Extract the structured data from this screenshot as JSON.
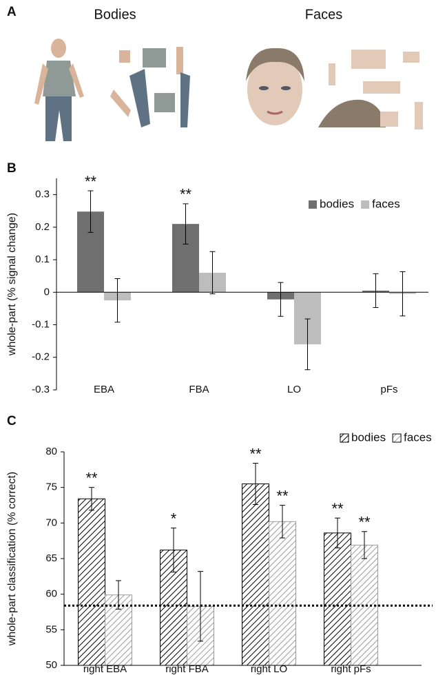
{
  "panel_a": {
    "label": "A",
    "titles": [
      "Bodies",
      "Faces"
    ]
  },
  "chart_data": [
    {
      "type": "bar",
      "panel_label": "B",
      "y_label": "whole-part (% signal change)",
      "categories": [
        "EBA",
        "FBA",
        "LO",
        "pFs"
      ],
      "series": [
        {
          "name": "bodies",
          "color": "#6f6f6f",
          "values": [
            0.248,
            0.21,
            -0.022,
            0.005
          ],
          "errors": [
            0.064,
            0.062,
            0.052,
            0.052
          ],
          "significance": [
            "**",
            "**",
            null,
            null
          ]
        },
        {
          "name": "faces",
          "color": "#bdbdbd",
          "values": [
            -0.025,
            0.06,
            -0.16,
            -0.005
          ],
          "errors": [
            0.067,
            0.065,
            0.078,
            0.068
          ],
          "significance": [
            null,
            null,
            null,
            null
          ]
        }
      ],
      "ylim": [
        -0.3,
        0.35
      ],
      "yticks": [
        -0.3,
        -0.2,
        -0.1,
        0,
        0.1,
        0.2,
        0.3
      ],
      "legend": "top-right"
    },
    {
      "type": "bar",
      "panel_label": "C",
      "y_label": "whole-part classification (% correct)",
      "categories": [
        "right EBA",
        "right FBA",
        "right LO",
        "right pFs"
      ],
      "series": [
        {
          "name": "bodies",
          "color": "#000000",
          "values": [
            73.4,
            66.2,
            75.5,
            68.6
          ],
          "errors": [
            1.6,
            3.1,
            2.9,
            2.1
          ],
          "significance": [
            "**",
            "*",
            "**",
            "**"
          ]
        },
        {
          "name": "faces",
          "color": "#9a9a9a",
          "values": [
            59.9,
            58.3,
            70.2,
            66.9
          ],
          "errors": [
            2.0,
            4.9,
            2.3,
            1.9
          ],
          "significance": [
            null,
            null,
            "**",
            "**"
          ]
        }
      ],
      "ylim": [
        50,
        80
      ],
      "yticks": [
        50,
        55,
        60,
        65,
        70,
        75,
        80
      ],
      "reference_line": 58.4,
      "hatched": true,
      "legend": "top-right"
    }
  ]
}
